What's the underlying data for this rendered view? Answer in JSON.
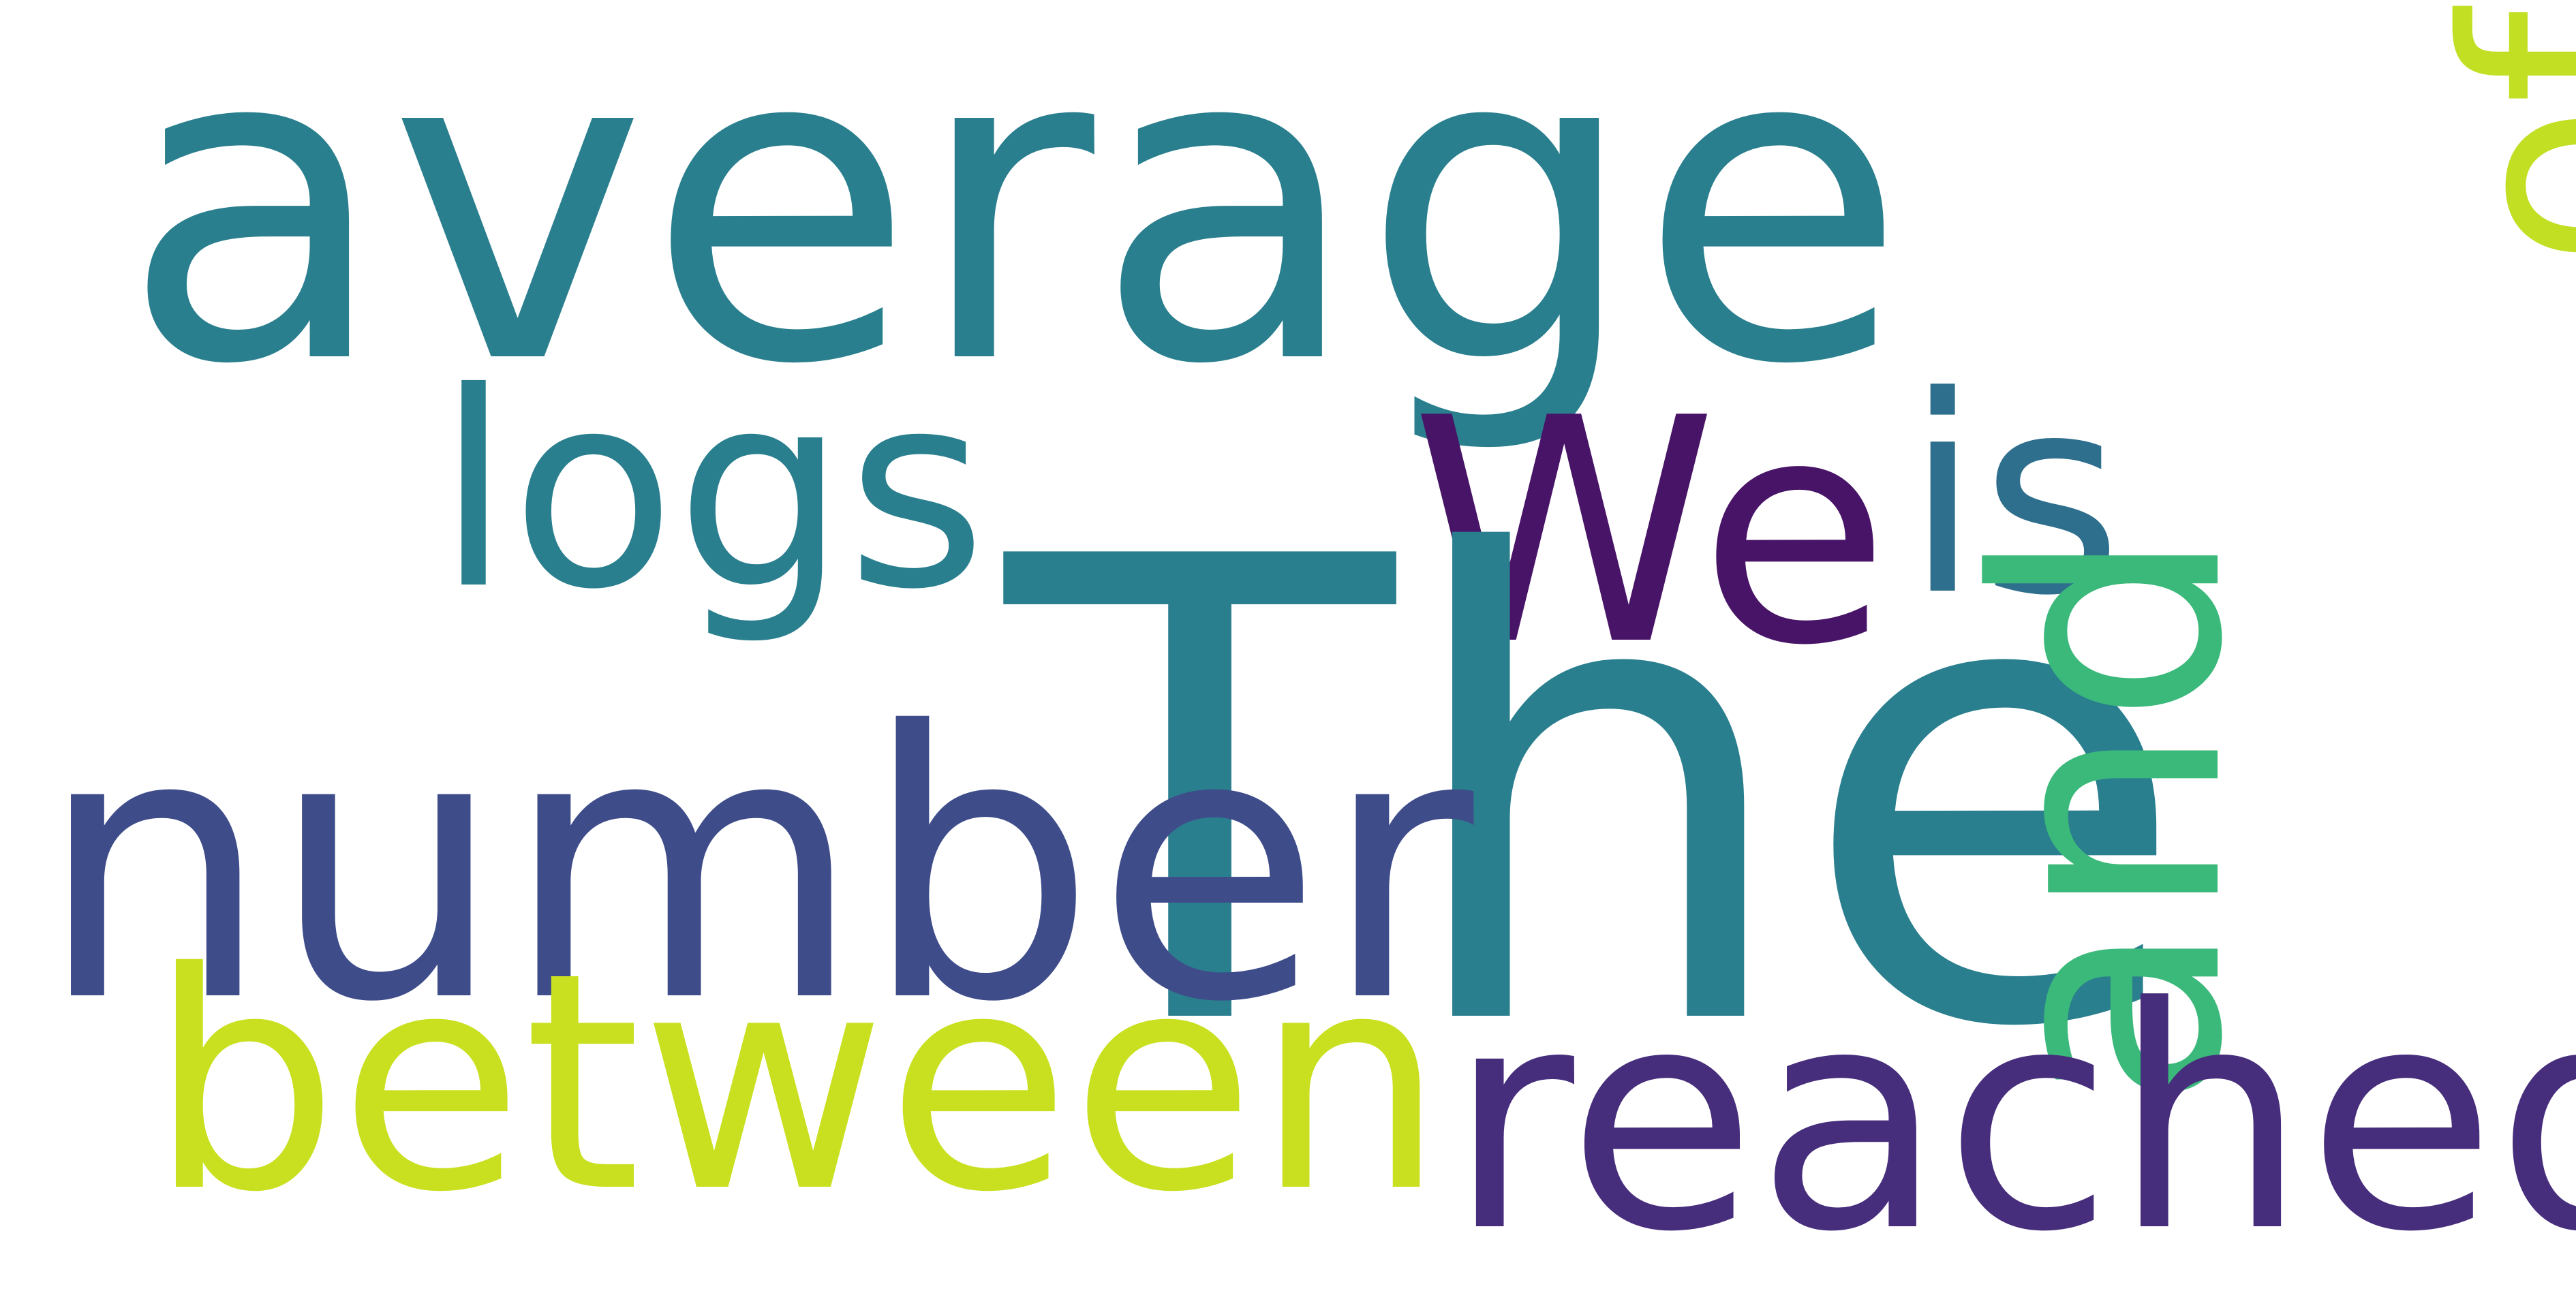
{
  "wordcloud": {
    "background": "#ffffff",
    "words": {
      "average": {
        "text": "average",
        "color": "#2a7f8e"
      },
      "logs": {
        "text": "logs",
        "color": "#2a7f8e"
      },
      "we": {
        "text": "We",
        "color": "#481467"
      },
      "is": {
        "text": "is",
        "color": "#2f6f8e"
      },
      "of": {
        "text": "of",
        "color": "#c2df23"
      },
      "the": {
        "text": "The",
        "color": "#2a7f8e"
      },
      "number": {
        "text": "number",
        "color": "#3e4c8a"
      },
      "and": {
        "text": "and",
        "color": "#3bb97a"
      },
      "between": {
        "text": "between",
        "color": "#c9e020"
      },
      "reached": {
        "text": "reached",
        "color": "#472e7c"
      }
    }
  }
}
